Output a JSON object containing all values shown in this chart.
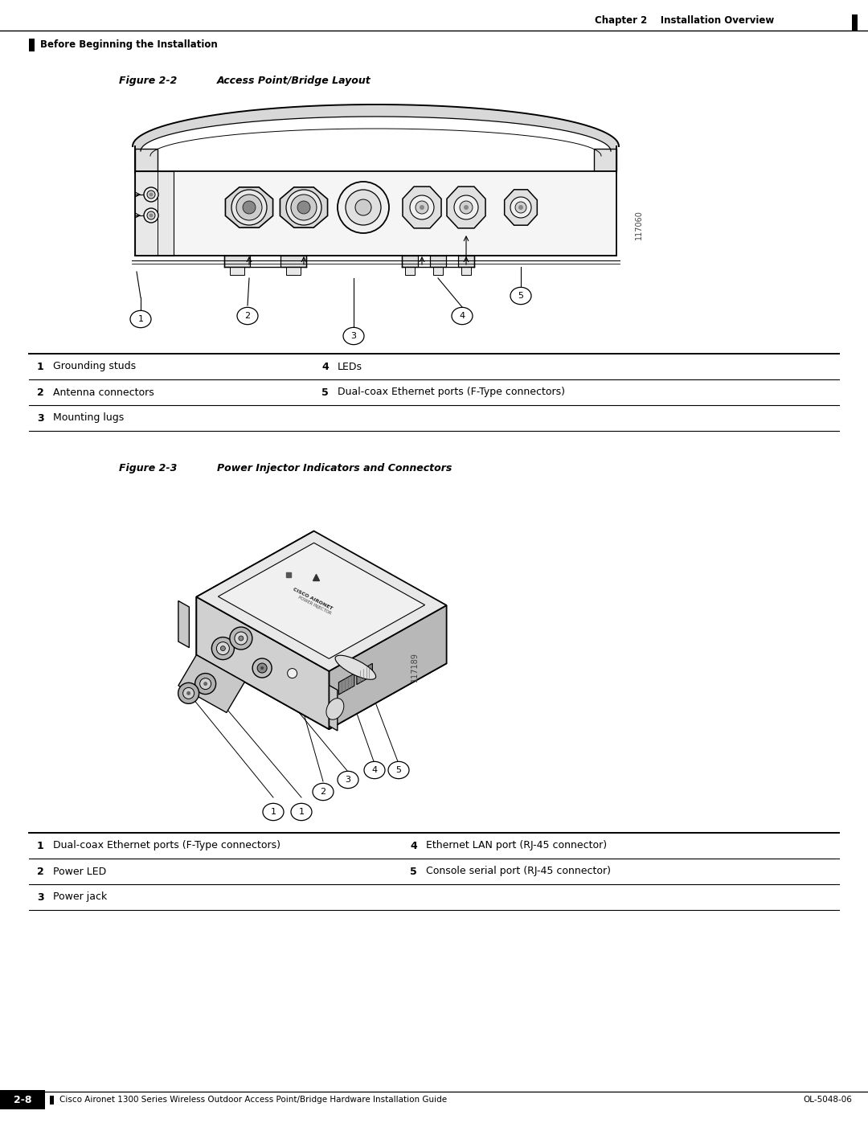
{
  "page_width": 10.8,
  "page_height": 13.97,
  "dpi": 100,
  "bg_color": "#ffffff",
  "header_text": "Chapter 2    Installation Overview",
  "subheader_text": "Before Beginning the Installation",
  "fig1_label": "Figure 2-2",
  "fig1_title": "Access Point/Bridge Layout",
  "fig1_image_id": "117060",
  "fig2_label": "Figure 2-3",
  "fig2_title": "Power Injector Indicators and Connectors",
  "fig2_image_id": "117189",
  "table1_rows": [
    {
      "num": "1",
      "left_label": "Grounding studs",
      "right_num": "4",
      "right_label": "LEDs"
    },
    {
      "num": "2",
      "left_label": "Antenna connectors",
      "right_num": "5",
      "right_label": "Dual-coax Ethernet ports (F-Type connectors)"
    },
    {
      "num": "3",
      "left_label": "Mounting lugs",
      "right_num": "",
      "right_label": ""
    }
  ],
  "table2_rows": [
    {
      "num": "1",
      "left_label": "Dual-coax Ethernet ports (F-Type connectors)",
      "right_num": "4",
      "right_label": "Ethernet LAN port (RJ-45 connector)"
    },
    {
      "num": "2",
      "left_label": "Power LED",
      "right_num": "5",
      "right_label": "Console serial port (RJ-45 connector)"
    },
    {
      "num": "3",
      "left_label": "Power jack",
      "right_num": "",
      "right_label": ""
    }
  ],
  "footer_left": "Cisco Aironet 1300 Series Wireless Outdoor Access Point/Bridge Hardware Installation Guide",
  "footer_right": "OL-5048-06",
  "footer_page": "2-8",
  "t1_col_split": 390,
  "t2_col_split": 500
}
